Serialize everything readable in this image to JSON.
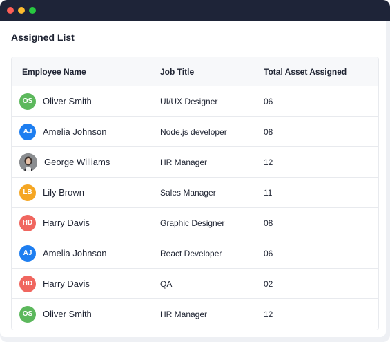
{
  "window": {
    "controls": [
      "close",
      "minimize",
      "maximize"
    ]
  },
  "page": {
    "title": "Assigned List"
  },
  "table": {
    "headers": {
      "name": "Employee Name",
      "job": "Job Title",
      "total": "Total Asset Assigned"
    },
    "rows": [
      {
        "initials": "OS",
        "avatar_color": "#5cb85c",
        "name": "Oliver Smith",
        "job": "UI/UX Designer",
        "total": "06"
      },
      {
        "initials": "AJ",
        "avatar_color": "#1e7ef0",
        "name": "Amelia Johnson",
        "job": "Node.js developer",
        "total": "08"
      },
      {
        "initials": "",
        "avatar_color": "#6b6f73",
        "avatar_type": "photo",
        "name": "George Williams",
        "job": "HR Manager",
        "total": "12"
      },
      {
        "initials": "LB",
        "avatar_color": "#f5a623",
        "name": "Lily Brown",
        "job": "Sales Manager",
        "total": "11"
      },
      {
        "initials": "HD",
        "avatar_color": "#f0665f",
        "name": "Harry Davis",
        "job": "Graphic Designer",
        "total": "08"
      },
      {
        "initials": "AJ",
        "avatar_color": "#1e7ef0",
        "name": "Amelia Johnson",
        "job": "React Developer",
        "total": "06"
      },
      {
        "initials": "HD",
        "avatar_color": "#f0665f",
        "name": "Harry Davis",
        "job": "QA",
        "total": "02"
      },
      {
        "initials": "OS",
        "avatar_color": "#5cb85c",
        "name": "Oliver Smith",
        "job": "HR Manager",
        "total": "12"
      }
    ]
  }
}
